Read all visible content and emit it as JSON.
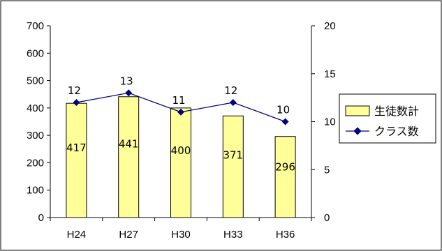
{
  "chart_data": {
    "type": "bar",
    "categories": [
      "H24",
      "H27",
      "H30",
      "H33",
      "H36"
    ],
    "series": [
      {
        "name": "生徒数計",
        "type": "bar",
        "axis": "left",
        "values": [
          417,
          441,
          400,
          371,
          296
        ],
        "color": "#ffff99"
      },
      {
        "name": "クラス数",
        "type": "line",
        "axis": "right",
        "values": [
          12,
          13,
          11,
          12,
          10
        ],
        "color": "#000080"
      }
    ],
    "y_left": {
      "min": 0,
      "max": 700,
      "step": 100,
      "ticks": [
        "0",
        "100",
        "200",
        "300",
        "400",
        "500",
        "600",
        "700"
      ]
    },
    "y_right": {
      "min": 0,
      "max": 20,
      "step": 5,
      "ticks": [
        "0",
        "5",
        "10",
        "15",
        "20"
      ]
    },
    "grid": false,
    "legend": "right"
  }
}
